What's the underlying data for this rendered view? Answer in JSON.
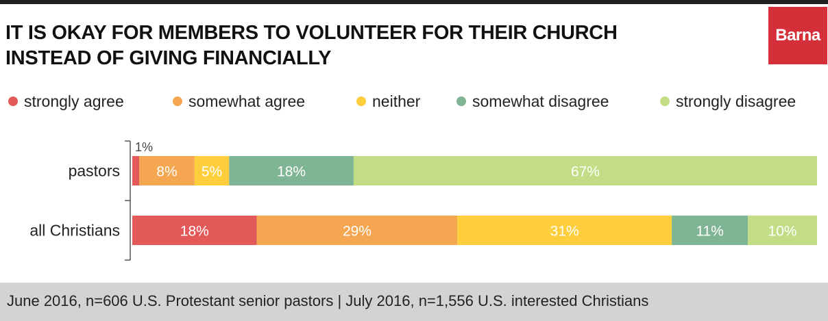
{
  "chart_data": {
    "type": "bar",
    "orientation": "horizontal",
    "stacked": true,
    "title": "IT IS OKAY FOR MEMBERS TO VOLUNTEER FOR THEIR CHURCH INSTEAD OF GIVING FINANCIALLY",
    "title_lines": [
      "IT IS OKAY FOR MEMBERS TO VOLUNTEER FOR THEIR CHURCH",
      "INSTEAD OF GIVING FINANCIALLY"
    ],
    "categories": [
      "pastors",
      "all Christians"
    ],
    "series": [
      {
        "name": "strongly agree",
        "color": "#e45a5a",
        "values": [
          1,
          18
        ],
        "labels": [
          "1%",
          "18%"
        ]
      },
      {
        "name": "somewhat agree",
        "color": "#f4a651",
        "values": [
          8,
          29
        ],
        "labels": [
          "8%",
          "29%"
        ]
      },
      {
        "name": "neither",
        "color": "#fece3d",
        "values": [
          5,
          31
        ],
        "labels": [
          "5%",
          "31%"
        ]
      },
      {
        "name": "somewhat disagree",
        "color": "#7fb594",
        "values": [
          18,
          11
        ],
        "labels": [
          "18%",
          "11%"
        ]
      },
      {
        "name": "strongly disagree",
        "color": "#c3dd87",
        "values": [
          67,
          10
        ],
        "labels": [
          "67%",
          "10%"
        ]
      }
    ],
    "legend_position": "top",
    "grid": false
  },
  "brand": {
    "logo_text": "Barna",
    "logo_color": "#d5303a"
  },
  "footer": {
    "source": "June 2016, n=606 U.S. Protestant senior pastors | July 2016, n=1,556 U.S. interested Christians"
  }
}
